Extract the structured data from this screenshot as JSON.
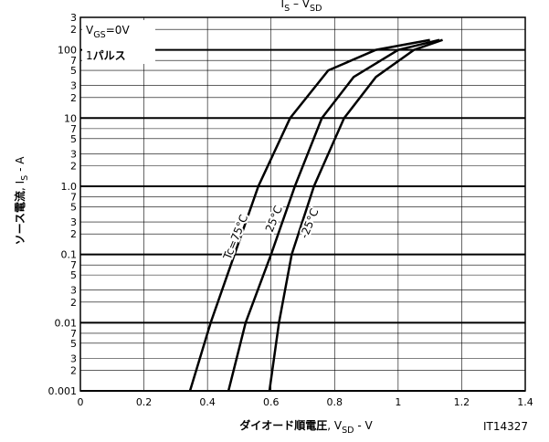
{
  "chart_data": {
    "type": "line",
    "title": [
      {
        "text": "I"
      },
      {
        "text": "S",
        "sub": true
      },
      {
        "text": " – V"
      },
      {
        "text": "SD",
        "sub": true
      }
    ],
    "x_label": [
      {
        "text": "ダイオード順電圧",
        "bold": true
      },
      {
        "text": ", V"
      },
      {
        "text": "SD",
        "sub": true
      },
      {
        "text": " - V"
      }
    ],
    "y_label": [
      {
        "text": "ソース電流",
        "bold": true
      },
      {
        "text": ", I"
      },
      {
        "text": "S",
        "sub": true
      },
      {
        "text": " - A"
      }
    ],
    "figure_id": "IT14327",
    "annotations": [
      {
        "parts": [
          {
            "text": "V"
          },
          {
            "text": "GS",
            "sub": true
          },
          {
            "text": "=0V"
          }
        ]
      },
      {
        "parts": [
          {
            "text": "1"
          },
          {
            "text": "パルス",
            "bold": true
          }
        ]
      }
    ],
    "xlim": [
      0,
      1.4
    ],
    "xticks": [
      0,
      0.2,
      0.4,
      0.6,
      0.8,
      1.0,
      1.2,
      1.4
    ],
    "ylim": [
      0.001,
      300
    ],
    "y_log": true,
    "yticks": [
      0.001,
      {
        "value": 0.002,
        "label": "2"
      },
      {
        "value": 0.003,
        "label": "3"
      },
      {
        "value": 0.005,
        "label": "5"
      },
      {
        "value": 0.007,
        "label": "7"
      },
      0.01,
      {
        "value": 0.02,
        "label": "2"
      },
      {
        "value": 0.03,
        "label": "3"
      },
      {
        "value": 0.05,
        "label": "5"
      },
      {
        "value": 0.07,
        "label": "7"
      },
      0.1,
      {
        "value": 0.2,
        "label": "2"
      },
      {
        "value": 0.3,
        "label": "3"
      },
      {
        "value": 0.5,
        "label": "5"
      },
      {
        "value": 0.7,
        "label": "7"
      },
      {
        "value": 1,
        "label": "1.0"
      },
      2,
      3,
      5,
      7,
      10,
      {
        "value": 20,
        "label": "2"
      },
      {
        "value": 30,
        "label": "3"
      },
      {
        "value": 50,
        "label": "5"
      },
      {
        "value": 70,
        "label": "7"
      },
      100,
      {
        "value": 200,
        "label": "2"
      },
      {
        "value": 300,
        "label": "3"
      }
    ],
    "grid": true,
    "color": "#000000",
    "series": [
      {
        "name": "Tc=75°C",
        "x": [
          0.345,
          0.41,
          0.485,
          0.56,
          0.66,
          0.78,
          0.93,
          1.1
        ],
        "values": [
          0.001,
          0.01,
          0.1,
          1,
          10,
          50,
          100,
          140
        ]
      },
      {
        "name": "25°C",
        "x": [
          0.466,
          0.52,
          0.6,
          0.675,
          0.76,
          0.86,
          1.0,
          1.13
        ],
        "values": [
          0.001,
          0.01,
          0.1,
          1,
          10,
          40,
          100,
          140
        ]
      },
      {
        "name": "-25°C",
        "x": [
          0.595,
          0.625,
          0.665,
          0.735,
          0.83,
          0.93,
          1.05,
          1.14
        ],
        "values": [
          0.001,
          0.01,
          0.1,
          1,
          10,
          40,
          100,
          140
        ]
      }
    ]
  }
}
